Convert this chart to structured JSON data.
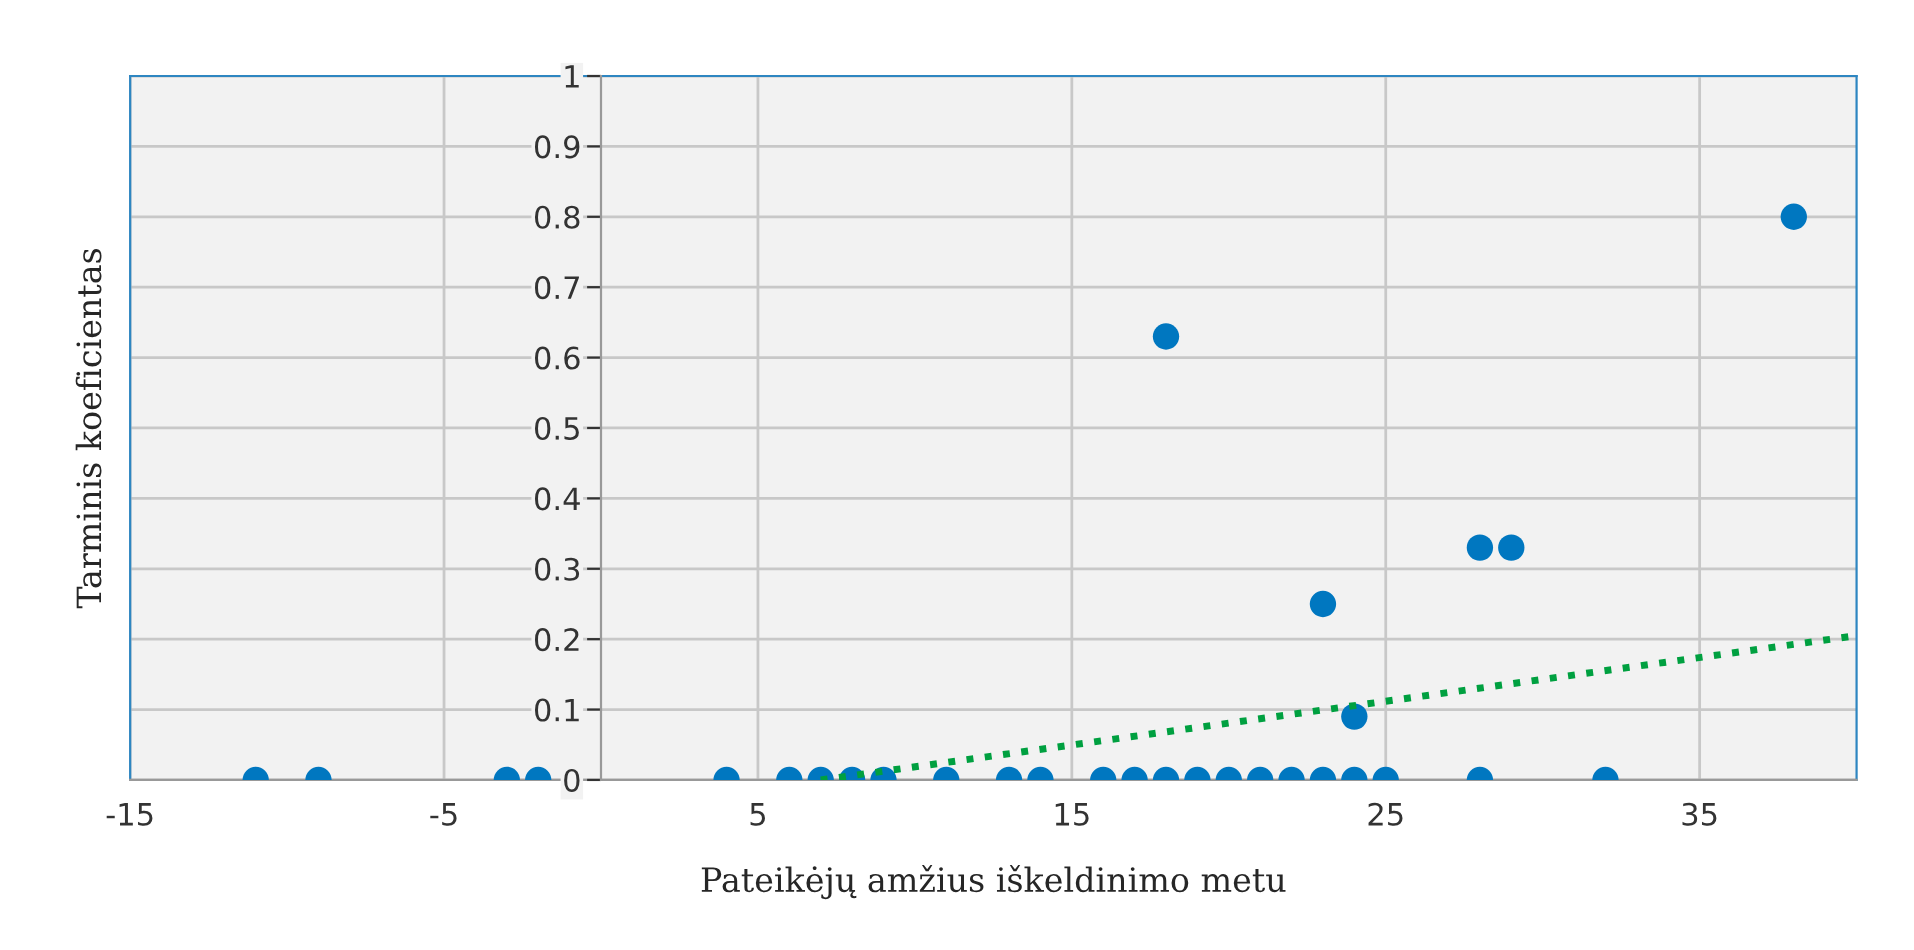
{
  "chart_data": {
    "type": "scatter",
    "xlabel": "Pateikėjų amžius iškeldinimo metu",
    "ylabel": "Tarminis koeficientas",
    "xlim": [
      -15,
      40
    ],
    "xticks": [
      -15,
      -5,
      5,
      15,
      25,
      35
    ],
    "ylim": [
      0,
      1
    ],
    "yticks": [
      0,
      0.1,
      0.2,
      0.3,
      0.4,
      0.5,
      0.6,
      0.7,
      0.8,
      0.9,
      1
    ],
    "grid": true,
    "marker": "circle",
    "series": [
      {
        "color": "#0077c0",
        "x": [
          -11,
          -9,
          -3,
          -2,
          4,
          6,
          7,
          8,
          9,
          11,
          13,
          14,
          16,
          17,
          18,
          19,
          20,
          21,
          22,
          23,
          24,
          25,
          28,
          32,
          18,
          23,
          24,
          28,
          29,
          38
        ],
        "values": [
          0,
          0,
          0,
          0,
          0,
          0,
          0,
          0,
          0,
          0,
          0,
          0,
          0,
          0,
          0,
          0,
          0,
          0,
          0,
          0,
          0,
          0,
          0,
          0,
          0.63,
          0.25,
          0.09,
          0.33,
          0.33,
          0.8
        ]
      },
      {
        "type": "line",
        "color": "#00a040",
        "line_style": "dotted",
        "marker": "none",
        "x": [
          7,
          40
        ],
        "values": [
          0,
          0.205
        ]
      }
    ]
  }
}
